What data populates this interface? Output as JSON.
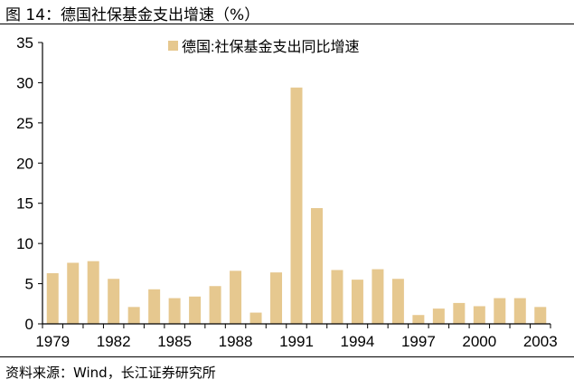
{
  "header": {
    "title": "图 14：德国社保基金支出增速（%）"
  },
  "footer": {
    "source": "资料来源：Wind，长江证券研究所"
  },
  "colors": {
    "bar": "#E6C88F",
    "axis": "#000000",
    "background": "#FFFFFF"
  },
  "chart_data": {
    "type": "bar",
    "title": "",
    "xlabel": "",
    "ylabel": "",
    "legend_position": "top-center",
    "grid": false,
    "ylim": [
      0,
      35
    ],
    "yticks": [
      0,
      5,
      10,
      15,
      20,
      25,
      30,
      35
    ],
    "categories": [
      "1979",
      "1980",
      "1981",
      "1982",
      "1983",
      "1984",
      "1985",
      "1986",
      "1987",
      "1988",
      "1989",
      "1990",
      "1991",
      "1992",
      "1993",
      "1994",
      "1995",
      "1996",
      "1997",
      "1998",
      "1999",
      "2000",
      "2001",
      "2002",
      "2003"
    ],
    "xtick_labels": [
      "1979",
      "1982",
      "1985",
      "1988",
      "1991",
      "1994",
      "1997",
      "2000",
      "2003"
    ],
    "series": [
      {
        "name": "德国:社保基金支出同比增速",
        "values": [
          6.3,
          7.6,
          7.8,
          5.6,
          2.1,
          4.3,
          3.2,
          3.4,
          4.7,
          6.6,
          1.4,
          6.4,
          29.4,
          14.4,
          6.7,
          5.5,
          6.8,
          5.6,
          1.1,
          1.9,
          2.6,
          2.2,
          3.2,
          3.2,
          2.1
        ]
      }
    ]
  }
}
